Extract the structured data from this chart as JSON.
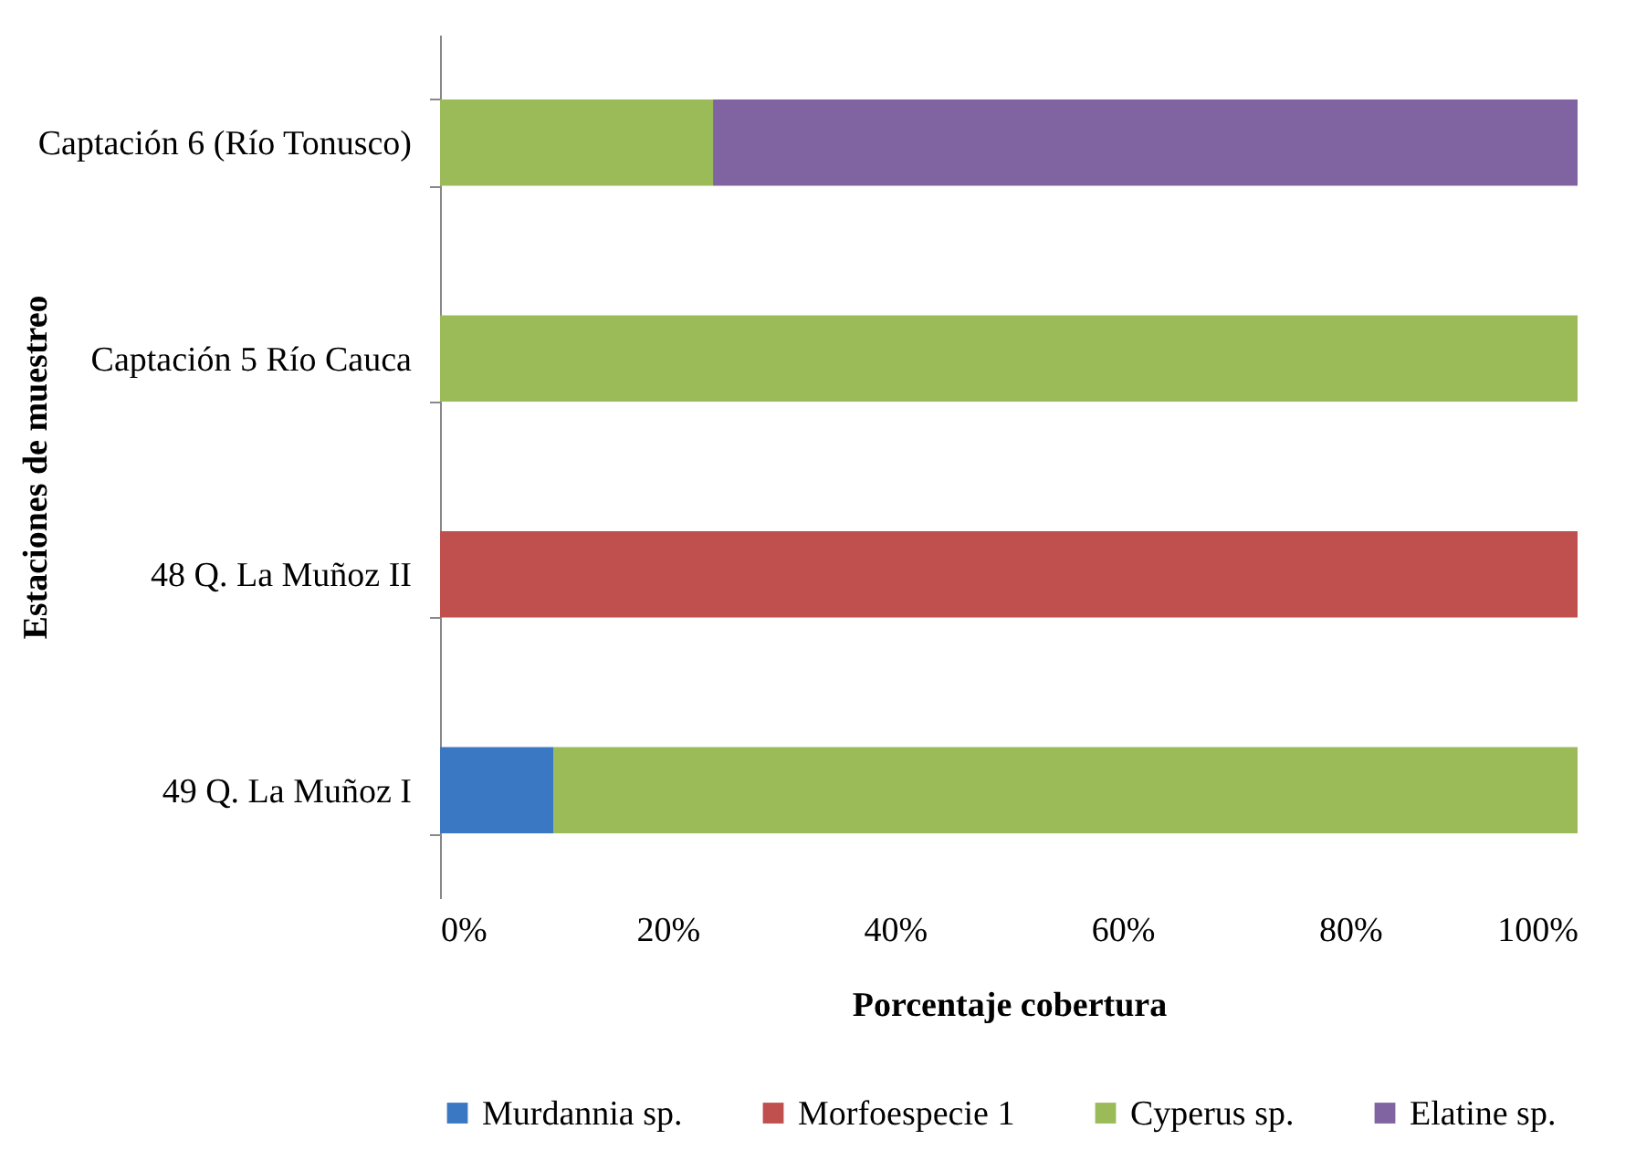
{
  "chart_data": {
    "type": "bar",
    "orientation": "horizontal",
    "stacked": true,
    "xlabel": "Porcentaje cobertura",
    "ylabel": "Estaciones de muestreo",
    "categories": [
      "Captación 6 (Río Tonusco)",
      "Captación 5 Río Cauca",
      "48 Q. La Muñoz II",
      "49 Q. La Muñoz I"
    ],
    "series": [
      {
        "name": "Murdannia sp.",
        "color": "#3a78c4",
        "values": [
          null,
          null,
          null,
          10
        ]
      },
      {
        "name": "Morfoespecie 1",
        "color": "#c0504d",
        "values": [
          null,
          null,
          100,
          null
        ]
      },
      {
        "name": "Cyperus sp.",
        "color": "#9bbb59",
        "values": [
          24,
          100,
          null,
          90
        ]
      },
      {
        "name": "Elatine sp.",
        "color": "#8064a2",
        "values": [
          76,
          null,
          null,
          null
        ]
      }
    ],
    "xlim": [
      0,
      100
    ],
    "xticks": [
      {
        "value": 0,
        "label": "0%"
      },
      {
        "value": 20,
        "label": "20%"
      },
      {
        "value": 40,
        "label": "40%"
      },
      {
        "value": 60,
        "label": "60%"
      },
      {
        "value": 80,
        "label": "80%"
      },
      {
        "value": 100,
        "label": "100%"
      }
    ],
    "grid": false,
    "legend": "bottom"
  }
}
